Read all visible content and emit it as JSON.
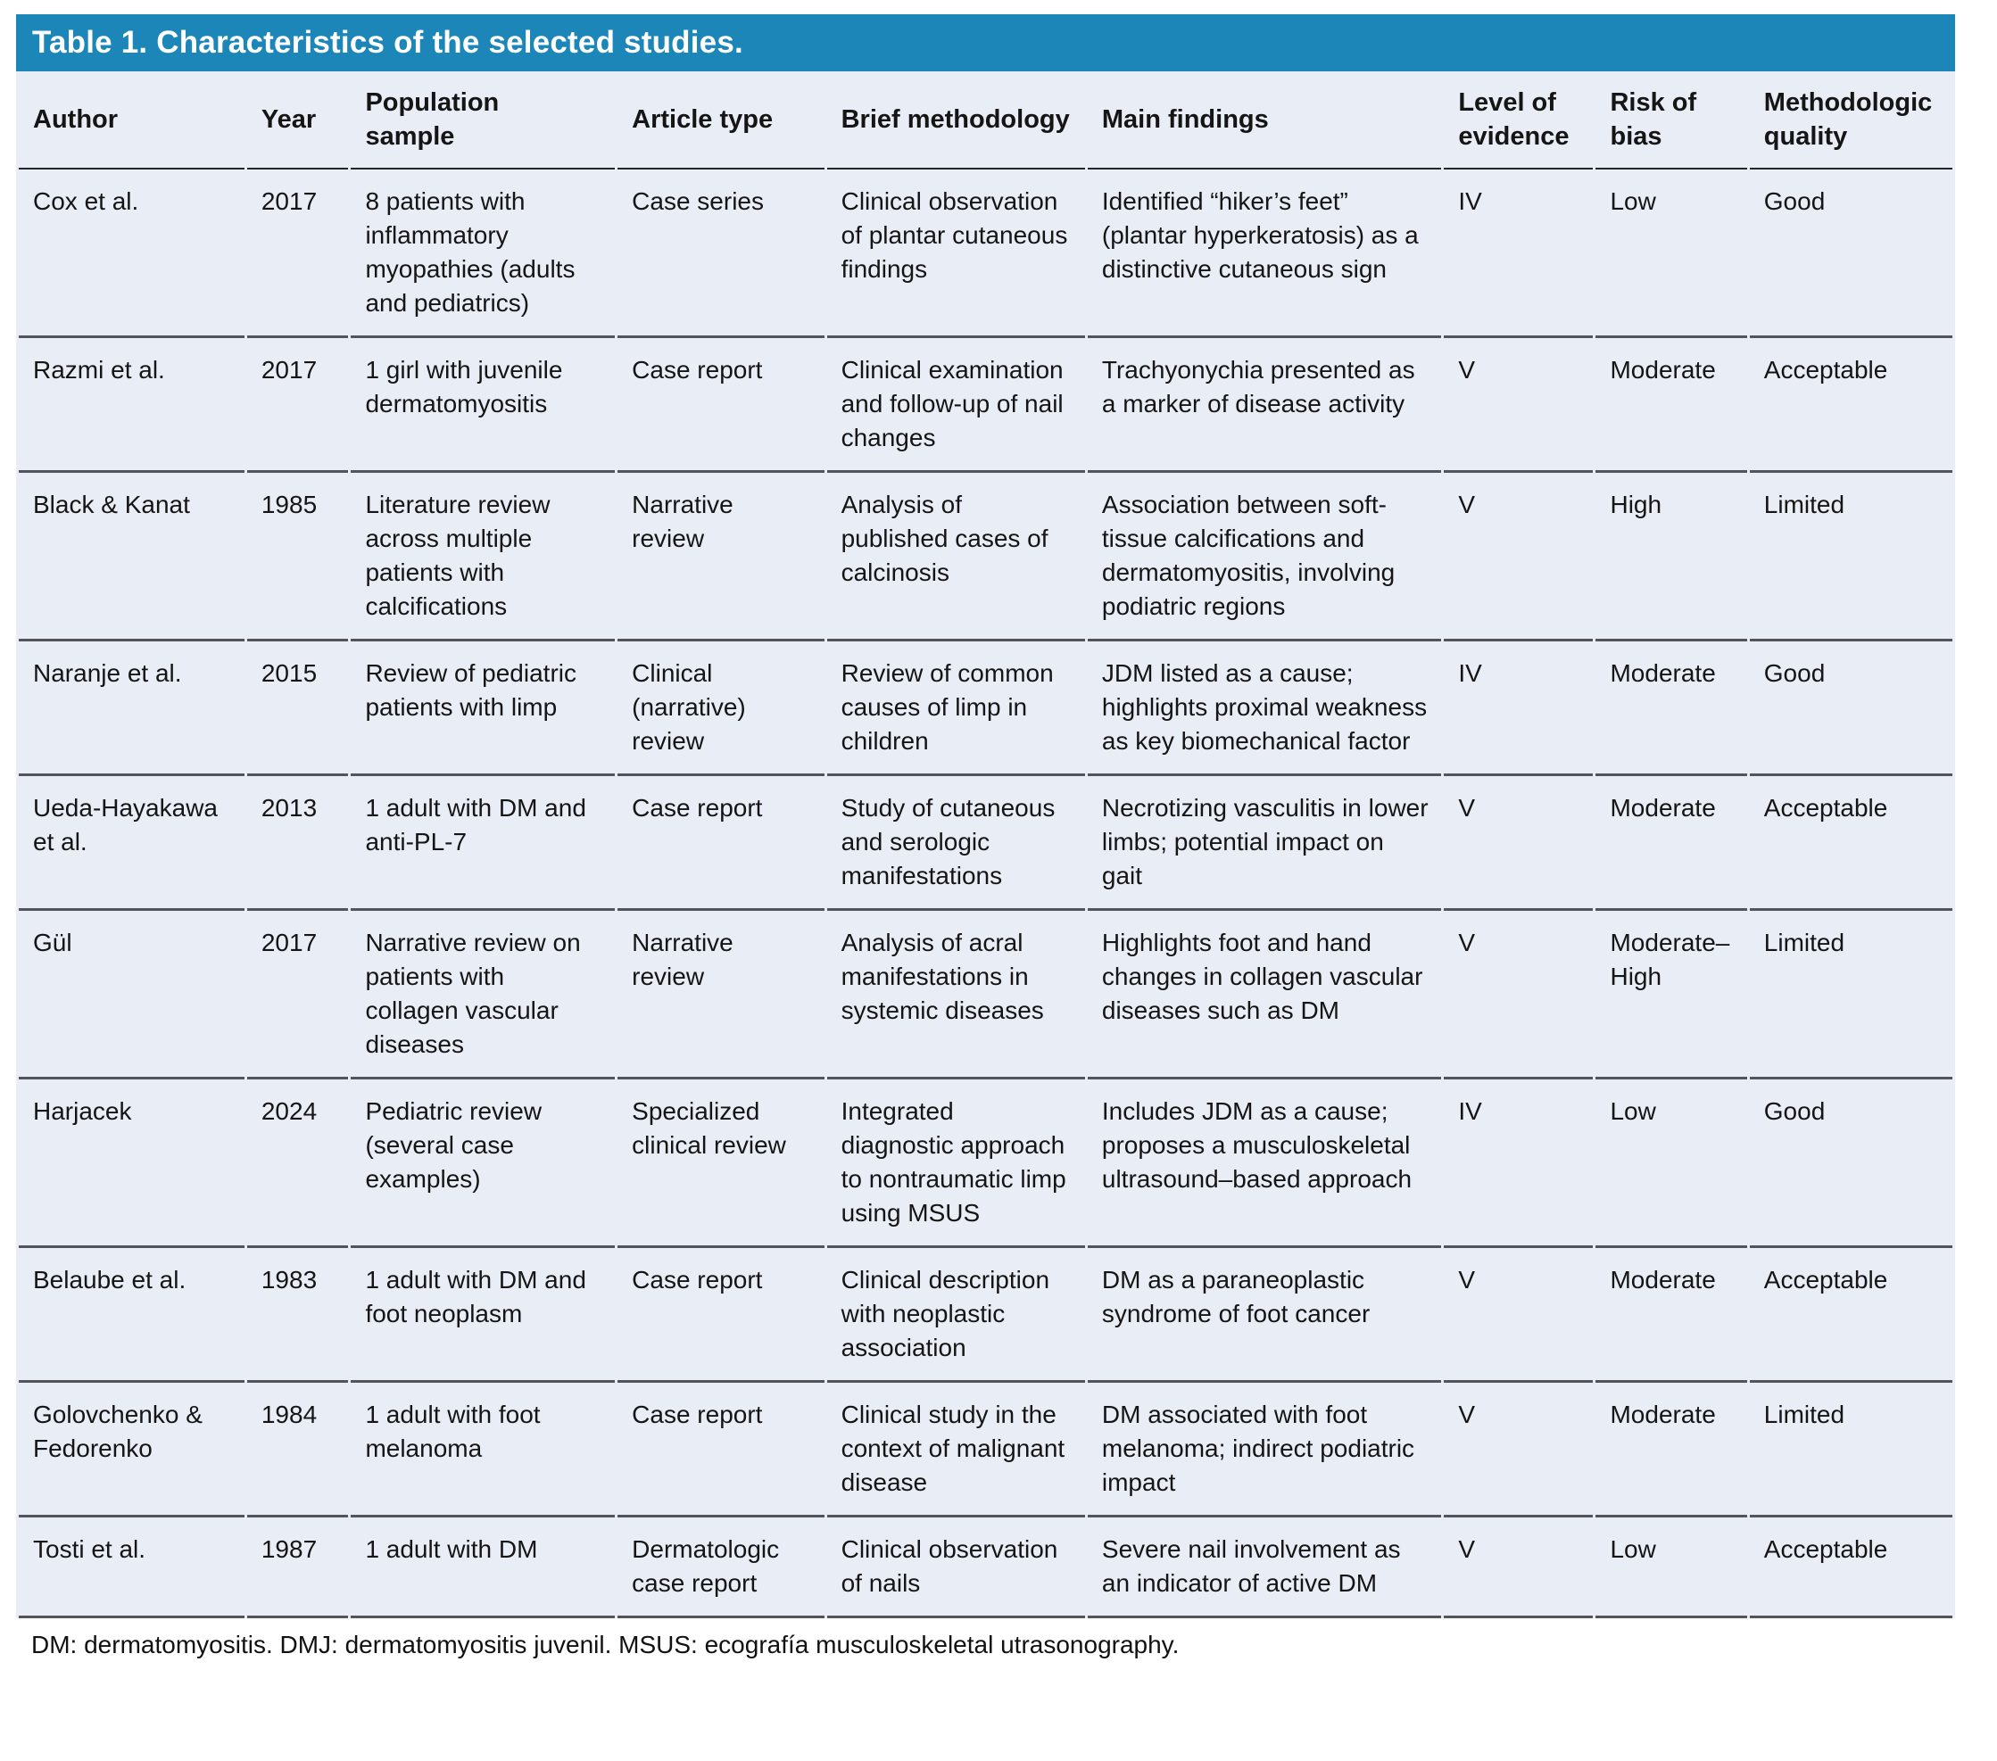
{
  "title": "Table 1. Characteristics of the selected studies.",
  "colors": {
    "header_bg": "#1b86b7",
    "body_bg": "#e9edf6",
    "row_border": "#53555a",
    "head_border": "#232428"
  },
  "table": {
    "columns": [
      "Author",
      "Year",
      "Population\nsample",
      "Article type",
      "Brief methodology",
      "Main findings",
      "Level of\nevidence",
      "Risk of\nbias",
      "Methodologic\nquality"
    ],
    "rows": [
      [
        "Cox et al.",
        "2017",
        "8 patients with inflammatory myopathies (adults and pediatrics)",
        "Case series",
        "Clinical observation of plantar cutaneous findings",
        "Identified “hiker’s feet” (plantar hyperkeratosis) as a distinctive cutaneous sign",
        "IV",
        "Low",
        "Good"
      ],
      [
        "Razmi et al.",
        "2017",
        "1 girl with juvenile dermatomyositis",
        "Case report",
        "Clinical examination and follow-up of nail changes",
        "Trachyonychia presented as a marker of disease activity",
        "V",
        "Moderate",
        "Acceptable"
      ],
      [
        "Black & Kanat",
        "1985",
        "Literature review across multiple patients with calcifications",
        "Narrative review",
        "Analysis of published cases of calcinosis",
        "Association between soft-tissue calcifications and dermatomyositis, involving podiatric regions",
        "V",
        "High",
        "Limited"
      ],
      [
        "Naranje et al.",
        "2015",
        "Review of pediatric patients with limp",
        "Clinical (narrative) review",
        "Review of common causes of limp in children",
        "JDM listed as a cause; highlights proximal weakness as key biomechanical factor",
        "IV",
        "Moderate",
        "Good"
      ],
      [
        "Ueda-Hayakawa et al.",
        "2013",
        "1 adult with DM and anti-PL-7",
        "Case report",
        "Study of cutaneous and serologic manifestations",
        "Necrotizing vasculitis in lower limbs; potential impact on gait",
        "V",
        "Moderate",
        "Acceptable"
      ],
      [
        "Gül",
        "2017",
        "Narrative review on patients with collagen vascular diseases",
        "Narrative review",
        "Analysis of acral manifestations in systemic diseases",
        "Highlights foot and hand changes in collagen vascular diseases such as DM",
        "V",
        "Moderate–High",
        "Limited"
      ],
      [
        "Harjacek",
        "2024",
        "Pediatric review (several case examples)",
        "Specialized clinical review",
        "Integrated diagnostic approach to nontraumatic limp using MSUS",
        "Includes JDM as a cause; proposes a musculoskeletal ultrasound–based approach",
        "IV",
        "Low",
        "Good"
      ],
      [
        "Belaube et al.",
        "1983",
        "1 adult with DM and foot neoplasm",
        "Case report",
        "Clinical description with neoplastic association",
        "DM as a paraneoplastic syndrome of foot cancer",
        "V",
        "Moderate",
        "Acceptable"
      ],
      [
        "Golovchenko & Fedorenko",
        "1984",
        "1 adult with foot melanoma",
        "Case report",
        "Clinical study in the context of malignant disease",
        "DM associated with foot melanoma; indirect podiatric impact",
        "V",
        "Moderate",
        "Limited"
      ],
      [
        "Tosti et al.",
        "1987",
        "1 adult with DM",
        "Dermatologic case report",
        "Clinical observation of nails",
        "Severe nail involvement as an indicator of active DM",
        "V",
        "Low",
        "Acceptable"
      ]
    ]
  },
  "footnote": "DM: dermatomyositis. DMJ: dermatomyositis juvenil. MSUS: ecografía musculoskeletal utrasonography."
}
